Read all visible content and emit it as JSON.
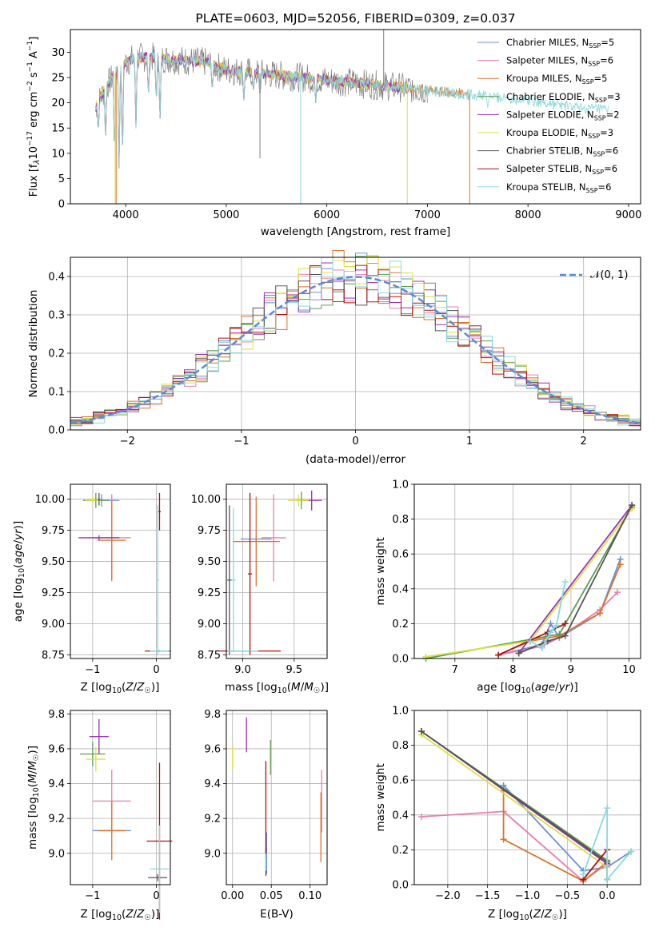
{
  "figure_title": "PLATE=0603, MJD=52056, FIBERID=0309, z=0.037",
  "palette": [
    "#6a8fd8",
    "#e87fb0",
    "#d9742a",
    "#5a9e50",
    "#9a30b0",
    "#dde040",
    "#555555",
    "#b01010",
    "#8ad8dc"
  ],
  "chart_data": [
    {
      "id": "spectrum",
      "type": "line",
      "title": "PLATE=0603, MJD=52056, FIBERID=0309, z=0.037",
      "xlabel": "wavelength [Angstrom, rest frame]",
      "ylabel": "Flux [f_λ 10^-17 erg cm^-2 s^-1 A^-1]",
      "xlim": [
        3450,
        9120
      ],
      "ylim": [
        0,
        34.5
      ],
      "xticks": [
        4000,
        5000,
        6000,
        7000,
        8000,
        9000
      ],
      "yticks": [
        0,
        5,
        10,
        15,
        20,
        25,
        30
      ],
      "grid": false,
      "legend_position": "upper-right",
      "legend": [
        {
          "label": "Chabrier MILES, N",
          "sub": "SSP",
          "tail": "=5",
          "color": "#6a8fd8"
        },
        {
          "label": "Salpeter MILES, N",
          "sub": "SSP",
          "tail": "=6",
          "color": "#e87fb0"
        },
        {
          "label": "Kroupa MILES, N",
          "sub": "SSP",
          "tail": "=5",
          "color": "#d9742a"
        },
        {
          "label": "Chabrier ELODIE, N",
          "sub": "SSP",
          "tail": "=3",
          "color": "#5a9e50"
        },
        {
          "label": "Salpeter ELODIE, N",
          "sub": "SSP",
          "tail": "=2",
          "color": "#9a30b0"
        },
        {
          "label": "Kroupa ELODIE, N",
          "sub": "SSP",
          "tail": "=3",
          "color": "#dde040"
        },
        {
          "label": "Chabrier STELIB, N",
          "sub": "SSP",
          "tail": "=6",
          "color": "#555555"
        },
        {
          "label": "Salpeter STELIB, N",
          "sub": "SSP",
          "tail": "=6",
          "color": "#b01010"
        },
        {
          "label": "Kroupa STELIB, N",
          "sub": "SSP",
          "tail": "=6",
          "color": "#8ad8dc"
        }
      ],
      "data_series": {
        "name": "data",
        "color": "#808080",
        "x_range": [
          3700,
          7000
        ]
      },
      "model_coverage": [
        {
          "x_range": [
            3700,
            7420
          ],
          "color": "#d9742a"
        },
        {
          "x_range": [
            3700,
            6800
          ],
          "color": "#dde040"
        },
        {
          "x_range": [
            3700,
            6800
          ],
          "color": "#9a30b0"
        },
        {
          "x_range": [
            3700,
            8800
          ],
          "color": "#8ad8dc"
        }
      ],
      "envelope": [
        [
          3700,
          19
        ],
        [
          3800,
          23
        ],
        [
          3900,
          26
        ],
        [
          4000,
          28
        ],
        [
          4100,
          29
        ],
        [
          4300,
          29
        ],
        [
          4500,
          28.5
        ],
        [
          4800,
          28
        ],
        [
          5000,
          26.5
        ],
        [
          5500,
          25.5
        ],
        [
          6000,
          24.5
        ],
        [
          6500,
          23.5
        ],
        [
          7000,
          22.5
        ],
        [
          7500,
          21.5
        ],
        [
          8000,
          20.5
        ],
        [
          8500,
          19
        ],
        [
          8800,
          18.5
        ]
      ],
      "absorption_lines": [
        [
          3727,
          14
        ],
        [
          3800,
          12
        ],
        [
          3889,
          9
        ],
        [
          3934,
          7
        ],
        [
          3968,
          9
        ],
        [
          4102,
          15
        ],
        [
          4226,
          21
        ],
        [
          4304,
          20
        ],
        [
          4341,
          16
        ],
        [
          4861,
          22
        ],
        [
          5175,
          20
        ],
        [
          5270,
          22
        ],
        [
          5335,
          21
        ],
        [
          5890,
          20
        ],
        [
          6563,
          24
        ],
        [
          6867,
          24
        ],
        [
          7600,
          19
        ]
      ],
      "spikes": [
        [
          3895,
          0,
          "#dde040"
        ],
        [
          3905,
          0,
          "#d9742a"
        ],
        [
          5335,
          9,
          "#808080"
        ],
        [
          5740,
          0,
          "#8ad8dc"
        ],
        [
          6800,
          0,
          "#dde040"
        ],
        [
          6565,
          34.5,
          "#808080"
        ],
        [
          7420,
          0,
          "#d9742a"
        ]
      ]
    },
    {
      "id": "residual-histogram",
      "type": "line",
      "xlabel": "(data-model)/error",
      "ylabel": "Normed distribution",
      "xlim": [
        -2.5,
        2.5
      ],
      "ylim": [
        0,
        0.45
      ],
      "xticks": [
        -2,
        -1,
        0,
        1,
        2
      ],
      "yticks": [
        0.0,
        0.1,
        0.2,
        0.3,
        0.4
      ],
      "grid": true,
      "legend": [
        {
          "label": "𝒩(0, 1)",
          "color": "#5b8bd6",
          "style": "dashed"
        }
      ],
      "bins": 50,
      "reference_curve": {
        "name": "N(0,1)",
        "mean": 0,
        "sigma": 1
      }
    },
    {
      "id": "age-vs-metallicity",
      "type": "scatter",
      "xlabel": "Z [log10(Z/Z☉)]",
      "ylabel": "age [log10(age/yr)]",
      "xlim": [
        -1.35,
        0.22
      ],
      "ylim": [
        8.72,
        10.12
      ],
      "xticks": [
        -1,
        0
      ],
      "yticks": [
        8.75,
        9.0,
        9.25,
        9.5,
        9.75,
        10.0
      ],
      "grid": true,
      "points": [
        {
          "x": -0.86,
          "y": 9.99,
          "xerr": 0.28,
          "yerr": 0.05,
          "color": "#6a8fd8"
        },
        {
          "x": -0.7,
          "y": 9.69,
          "xerr": 0.3,
          "yerr": 0.35,
          "color": "#e87fb0"
        },
        {
          "x": -0.7,
          "y": 9.67,
          "xerr": 0.22,
          "yerr": 0.32,
          "color": "#d9742a"
        },
        {
          "x": -0.95,
          "y": 9.99,
          "xerr": 0.2,
          "yerr": 0.06,
          "color": "#5a9e50"
        },
        {
          "x": -0.9,
          "y": 9.69,
          "xerr": 0.32,
          "yerr": 0.02,
          "color": "#9a30b0"
        },
        {
          "x": -1.0,
          "y": 9.99,
          "xerr": 0.12,
          "yerr": 0.03,
          "color": "#dde040"
        },
        {
          "x": -0.9,
          "y": 10.0,
          "xerr": 0.02,
          "yerr": 0.05,
          "color": "#555555"
        },
        {
          "x": 0.05,
          "y": 9.9,
          "xerr": 0.02,
          "yerr": 0.15,
          "color": "#b01010"
        },
        {
          "x": 0.02,
          "y": 8.78,
          "xerr": 0.2,
          "yerr": 0.01,
          "color": "#b01010"
        },
        {
          "x": 0.02,
          "y": 9.35,
          "xerr": 0.02,
          "yerr": 0.6,
          "color": "#8ad8dc"
        },
        {
          "x": 0.05,
          "y": 8.78,
          "xerr": 0.15,
          "yerr": 0.01,
          "color": "#8ad8dc"
        }
      ]
    },
    {
      "id": "age-vs-mass",
      "type": "scatter",
      "xlabel": "mass [log10(M/M☉)]",
      "ylabel": "",
      "xlim": [
        8.84,
        9.82
      ],
      "ylim": [
        8.72,
        10.12
      ],
      "xticks": [
        9.0,
        9.5
      ],
      "yticks": [
        8.75,
        9.0,
        9.25,
        9.5,
        9.75,
        10.0
      ],
      "grid": true,
      "points": [
        {
          "x": 9.13,
          "y": 9.68,
          "xerr": 0.15,
          "yerr": 0.02,
          "color": "#6a8fd8"
        },
        {
          "x": 9.3,
          "y": 9.69,
          "xerr": 0.12,
          "yerr": 0.35,
          "color": "#e87fb0"
        },
        {
          "x": 9.13,
          "y": 9.66,
          "xerr": 0.23,
          "yerr": 0.36,
          "color": "#d9742a"
        },
        {
          "x": 9.57,
          "y": 9.99,
          "xerr": 0.05,
          "yerr": 0.07,
          "color": "#5a9e50"
        },
        {
          "x": 9.67,
          "y": 9.99,
          "xerr": 0.1,
          "yerr": 0.08,
          "color": "#9a30b0"
        },
        {
          "x": 9.54,
          "y": 9.99,
          "xerr": 0.1,
          "yerr": 0.05,
          "color": "#dde040"
        },
        {
          "x": 8.87,
          "y": 9.35,
          "xerr": 0.02,
          "yerr": 0.6,
          "color": "#555555"
        },
        {
          "x": 9.07,
          "y": 9.4,
          "xerr": 0.02,
          "yerr": 0.65,
          "color": "#b01010"
        },
        {
          "x": 9.07,
          "y": 8.78,
          "xerr": 0.3,
          "yerr": 0.01,
          "color": "#b01010"
        },
        {
          "x": 8.91,
          "y": 9.35,
          "xerr": 0.02,
          "yerr": 0.58,
          "color": "#8ad8dc"
        },
        {
          "x": 9.0,
          "y": 8.78,
          "xerr": 0.15,
          "yerr": 0.01,
          "color": "#8ad8dc"
        }
      ]
    },
    {
      "id": "mass-weight-vs-age",
      "type": "line",
      "xlabel": "age [log10(age/yr)]",
      "ylabel": "mass weight",
      "xlim": [
        6.3,
        10.2
      ],
      "ylim": [
        0,
        1.0
      ],
      "xticks": [
        7,
        8,
        9,
        10
      ],
      "yticks": [
        0.0,
        0.2,
        0.4,
        0.6,
        0.8,
        1.0
      ],
      "grid": true,
      "series": [
        {
          "color": "#6a8fd8",
          "x": [
            7.75,
            8.5,
            8.65,
            8.8,
            9.5,
            9.85
          ],
          "y": [
            0.02,
            0.08,
            0.2,
            0.12,
            0.26,
            0.57
          ]
        },
        {
          "color": "#e87fb0",
          "x": [
            7.75,
            8.5,
            8.8,
            9.5,
            9.8
          ],
          "y": [
            0.02,
            0.07,
            0.12,
            0.28,
            0.38
          ]
        },
        {
          "color": "#d9742a",
          "x": [
            7.75,
            8.3,
            8.8,
            9.5,
            9.85
          ],
          "y": [
            0.02,
            0.1,
            0.13,
            0.26,
            0.54
          ]
        },
        {
          "color": "#5a9e50",
          "x": [
            6.5,
            8.8,
            10.05
          ],
          "y": [
            0.0,
            0.14,
            0.87
          ]
        },
        {
          "color": "#9a30b0",
          "x": [
            8.1,
            10.05
          ],
          "y": [
            0.03,
            0.88
          ]
        },
        {
          "color": "#dde040",
          "x": [
            6.5,
            8.3,
            10.05
          ],
          "y": [
            0.01,
            0.1,
            0.86
          ]
        },
        {
          "color": "#555555",
          "x": [
            8.1,
            8.6,
            8.9,
            10.05
          ],
          "y": [
            0.03,
            0.1,
            0.13,
            0.88
          ]
        },
        {
          "color": "#b01010",
          "x": [
            7.75,
            8.6,
            8.9
          ],
          "y": [
            0.02,
            0.15,
            0.2
          ]
        },
        {
          "color": "#8ad8dc",
          "x": [
            8.3,
            8.5,
            8.65,
            8.75,
            8.9
          ],
          "y": [
            0.1,
            0.06,
            0.15,
            0.19,
            0.44
          ]
        }
      ]
    },
    {
      "id": "mass-vs-metallicity",
      "type": "scatter",
      "xlabel": "Z [log10(Z/Z☉)]",
      "ylabel": "mass [log10(M/M☉)]",
      "xlim": [
        -1.35,
        0.22
      ],
      "ylim": [
        8.82,
        9.82
      ],
      "xticks": [
        -1,
        0
      ],
      "yticks": [
        9.0,
        9.2,
        9.4,
        9.6,
        9.8
      ],
      "grid": true,
      "points": [
        {
          "x": -0.7,
          "y": 9.13,
          "xerr": 0.3,
          "yerr": 0.02,
          "color": "#6a8fd8"
        },
        {
          "x": -0.7,
          "y": 9.3,
          "xerr": 0.3,
          "yerr": 0.18,
          "color": "#e87fb0"
        },
        {
          "x": -0.7,
          "y": 9.13,
          "xerr": 0.22,
          "yerr": 0.17,
          "color": "#d9742a"
        },
        {
          "x": -1.0,
          "y": 9.57,
          "xerr": 0.2,
          "yerr": 0.07,
          "color": "#5a9e50"
        },
        {
          "x": -0.9,
          "y": 9.67,
          "xerr": 0.15,
          "yerr": 0.1,
          "color": "#9a30b0"
        },
        {
          "x": -0.95,
          "y": 9.54,
          "xerr": 0.15,
          "yerr": 0.07,
          "color": "#dde040"
        },
        {
          "x": 0.02,
          "y": 8.86,
          "xerr": 0.15,
          "yerr": 0.02,
          "color": "#555555"
        },
        {
          "x": 0.05,
          "y": 9.07,
          "xerr": 0.2,
          "yerr": 0.45,
          "color": "#b01010"
        },
        {
          "x": 0.05,
          "y": 8.91,
          "xerr": 0.15,
          "yerr": 0.25,
          "color": "#8ad8dc"
        }
      ]
    },
    {
      "id": "mass-vs-extinction",
      "type": "scatter",
      "xlabel": "E(B-V)",
      "ylabel": "",
      "xlim": [
        -0.008,
        0.122
      ],
      "ylim": [
        8.82,
        9.82
      ],
      "xticks": [
        0.0,
        0.05,
        0.1
      ],
      "yticks": [
        9.0,
        9.2,
        9.4,
        9.6,
        9.8
      ],
      "grid": true,
      "points": [
        {
          "x": 0.044,
          "y": 9.0,
          "xerr": 0,
          "yerr": 0.12,
          "color": "#6a8fd8"
        },
        {
          "x": 0.115,
          "y": 9.3,
          "xerr": 0,
          "yerr": 0.18,
          "color": "#e87fb0"
        },
        {
          "x": 0.114,
          "y": 9.15,
          "xerr": 0,
          "yerr": 0.2,
          "color": "#d9742a"
        },
        {
          "x": 0.049,
          "y": 9.55,
          "xerr": 0,
          "yerr": 0.1,
          "color": "#5a9e50"
        },
        {
          "x": 0.018,
          "y": 9.68,
          "xerr": 0,
          "yerr": 0.1,
          "color": "#9a30b0"
        },
        {
          "x": 0.0,
          "y": 9.55,
          "xerr": 0,
          "yerr": 0.07,
          "color": "#dde040"
        },
        {
          "x": 0.043,
          "y": 8.95,
          "xerr": 0,
          "yerr": 0.08,
          "color": "#555555"
        },
        {
          "x": 0.043,
          "y": 9.25,
          "xerr": 0,
          "yerr": 0.28,
          "color": "#b01010"
        },
        {
          "x": 0.043,
          "y": 8.95,
          "xerr": 0,
          "yerr": 0.05,
          "color": "#8ad8dc"
        }
      ]
    },
    {
      "id": "mass-weight-vs-metallicity",
      "type": "line",
      "xlabel": "Z [log10(Z/Z☉)]",
      "ylabel": "mass weight",
      "xlim": [
        -2.42,
        0.42
      ],
      "ylim": [
        0,
        1.0
      ],
      "xticks": [
        -2.0,
        -1.5,
        -1.0,
        -0.5,
        0.0
      ],
      "yticks": [
        0.0,
        0.2,
        0.4,
        0.6,
        0.8,
        1.0
      ],
      "grid": true,
      "series": [
        {
          "color": "#6a8fd8",
          "x": [
            -1.3,
            -0.3,
            0.0,
            0.3
          ],
          "y": [
            0.57,
            0.08,
            0.1,
            0.19
          ]
        },
        {
          "color": "#e87fb0",
          "x": [
            -2.33,
            -1.3,
            -0.3,
            0.0
          ],
          "y": [
            0.39,
            0.42,
            0.02,
            0.12
          ]
        },
        {
          "color": "#d9742a",
          "x": [
            -1.3,
            -1.3,
            -0.3,
            0.0
          ],
          "y": [
            0.54,
            0.26,
            0.02,
            0.13
          ]
        },
        {
          "color": "#5a9e50",
          "x": [
            -2.33,
            0.0
          ],
          "y": [
            0.88,
            0.14
          ]
        },
        {
          "color": "#9a30b0",
          "x": [
            -2.33,
            0.0
          ],
          "y": [
            0.88,
            0.12
          ]
        },
        {
          "color": "#dde040",
          "x": [
            -2.33,
            0.0
          ],
          "y": [
            0.86,
            0.1
          ]
        },
        {
          "color": "#555555",
          "x": [
            -2.33,
            0.0,
            0.0
          ],
          "y": [
            0.88,
            0.13,
            0.03
          ]
        },
        {
          "color": "#b01010",
          "x": [
            -0.3,
            0.0
          ],
          "y": [
            0.03,
            0.2
          ]
        },
        {
          "color": "#8ad8dc",
          "x": [
            -0.3,
            0.0,
            0.0,
            0.3
          ],
          "y": [
            0.06,
            0.44,
            0.03,
            0.19
          ]
        }
      ]
    }
  ]
}
